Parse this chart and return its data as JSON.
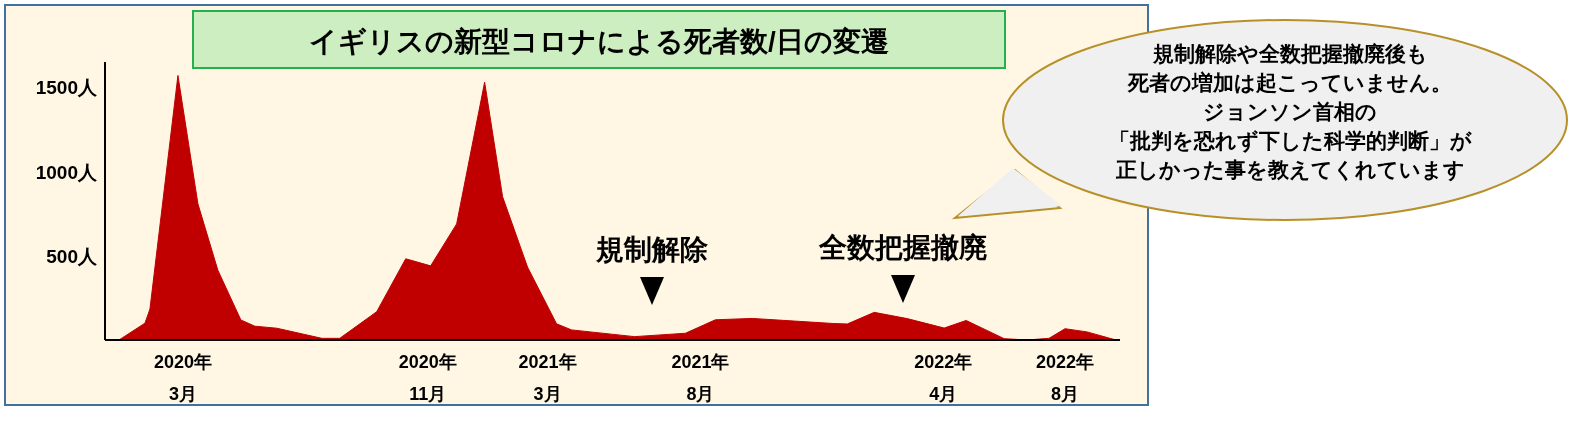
{
  "chart_data": {
    "type": "area",
    "title": "イギリスの新型コロナによる死者数/日の変遷",
    "color": "#c00000",
    "x": [
      "2019-12-28",
      "2020-01-23",
      "2020-01-28",
      "2020-02-25",
      "2020-03-16",
      "2020-04-05",
      "2020-04-28",
      "2020-05-12",
      "2020-06-03",
      "2020-07-18",
      "2020-08-05",
      "2020-09-11",
      "2020-10-10",
      "2020-11-04",
      "2020-11-30",
      "2020-12-28",
      "2021-01-15",
      "2021-02-09",
      "2021-03-10",
      "2021-03-25",
      "2021-05-27",
      "2021-07-17",
      "2021-08-16",
      "2021-09-22",
      "2021-12-12",
      "2021-12-26",
      "2022-01-22",
      "2022-02-24",
      "2022-04-02",
      "2022-04-24",
      "2022-06-01",
      "2022-06-24",
      "2022-07-16",
      "2022-08-01",
      "2022-08-23",
      "2022-09-21"
    ],
    "values": [
      0,
      100,
      184,
      1570,
      808,
      414,
      119,
      82,
      70,
      10,
      10,
      168,
      482,
      440,
      689,
      1530,
      850,
      432,
      96,
      60,
      20,
      40,
      120,
      128,
      98,
      95,
      164,
      127,
      71,
      116,
      8,
      0,
      10,
      67,
      48,
      0
    ],
    "xlim": [
      "2019-12-14",
      "2022-09-25"
    ],
    "ylim": [
      0,
      1650
    ],
    "xticks": [
      {
        "value": "2020-03-01",
        "label": "2020年\n3月"
      },
      {
        "value": "2020-11-01",
        "label": "2020年\n11月"
      },
      {
        "value": "2021-03-01",
        "label": "2021年\n3月"
      },
      {
        "value": "2021-08-01",
        "label": "2021年\n8月"
      },
      {
        "value": "2022-04-01",
        "label": "2022年\n4月"
      },
      {
        "value": "2022-08-01",
        "label": "2022年\n8月"
      }
    ],
    "yticks": [
      {
        "value": 500,
        "label": "500人"
      },
      {
        "value": 1000,
        "label": "1000人"
      },
      {
        "value": 1500,
        "label": "1500人"
      }
    ],
    "annotations": [
      "規制解除",
      "全数把握撤廃",
      "規制解除や全数把握撤廃後も",
      "死者の増加は起こっていません。",
      "ジョンソン首相の",
      "「批判を恐れず下した科学的判断」が",
      "正しかった事を教えてくれています"
    ]
  }
}
